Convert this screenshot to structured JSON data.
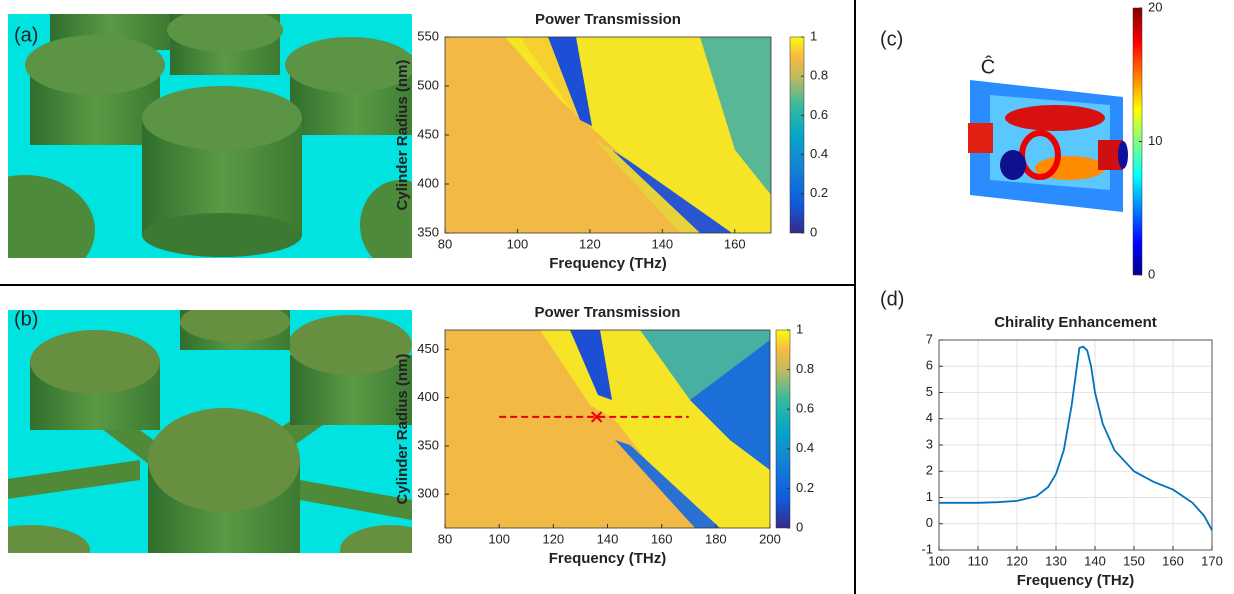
{
  "labels": [
    "(a)",
    "(b)",
    "(c)",
    "(d)"
  ],
  "chart_data": [
    {
      "type": "heatmap",
      "title": "Power Transmission",
      "xlabel": "Frequency (THz)",
      "ylabel": "Cylinder Radius (nm)",
      "xlim": [
        80,
        170
      ],
      "xticks": [
        80,
        100,
        120,
        140,
        160
      ],
      "ylim": [
        350,
        550
      ],
      "yticks": [
        350,
        400,
        450,
        500,
        550
      ],
      "clim": [
        0,
        1
      ],
      "cticks": [
        0,
        0.2,
        0.4,
        0.6,
        0.8,
        1
      ]
    },
    {
      "type": "heatmap",
      "title": "Power Transmission",
      "xlabel": "Frequency (THz)",
      "ylabel": "Cylinder Radius (nm)",
      "xlim": [
        80,
        200
      ],
      "xticks": [
        80,
        100,
        120,
        140,
        160,
        180,
        200
      ],
      "ylim": [
        265,
        470
      ],
      "yticks": [
        300,
        350,
        400,
        450
      ],
      "clim": [
        0,
        1
      ],
      "cticks": [
        0,
        0.2,
        0.4,
        0.6,
        0.8,
        1
      ],
      "cut": {
        "x": [
          100,
          170
        ],
        "y": [
          380,
          380
        ],
        "color": "#e8000b"
      },
      "marker": {
        "x": 136,
        "y": 380,
        "color": "#e8000b"
      }
    },
    {
      "type": "field",
      "label": "Ĉ",
      "clim": [
        0,
        20
      ],
      "cticks": [
        0,
        10,
        20
      ]
    },
    {
      "type": "line",
      "title": "Chirality Enhancement",
      "xlabel": "Frequency (THz)",
      "color": "#0072bd",
      "grid": true,
      "xlim": [
        100,
        170
      ],
      "xticks": [
        100,
        110,
        120,
        130,
        140,
        150,
        160,
        170
      ],
      "ylim": [
        -1,
        7
      ],
      "yticks": [
        -1,
        0,
        1,
        2,
        3,
        4,
        5,
        6,
        7
      ],
      "x": [
        100,
        105,
        110,
        115,
        120,
        125,
        128,
        130,
        132,
        134,
        135,
        136,
        137,
        138,
        139,
        140,
        142,
        145,
        150,
        155,
        160,
        165,
        168,
        170
      ],
      "values": [
        0.8,
        0.8,
        0.8,
        0.82,
        0.87,
        1.05,
        1.4,
        1.9,
        2.8,
        4.5,
        5.6,
        6.7,
        6.75,
        6.6,
        6.0,
        5.0,
        3.8,
        2.8,
        2.0,
        1.6,
        1.3,
        0.8,
        0.3,
        -0.25
      ]
    }
  ]
}
